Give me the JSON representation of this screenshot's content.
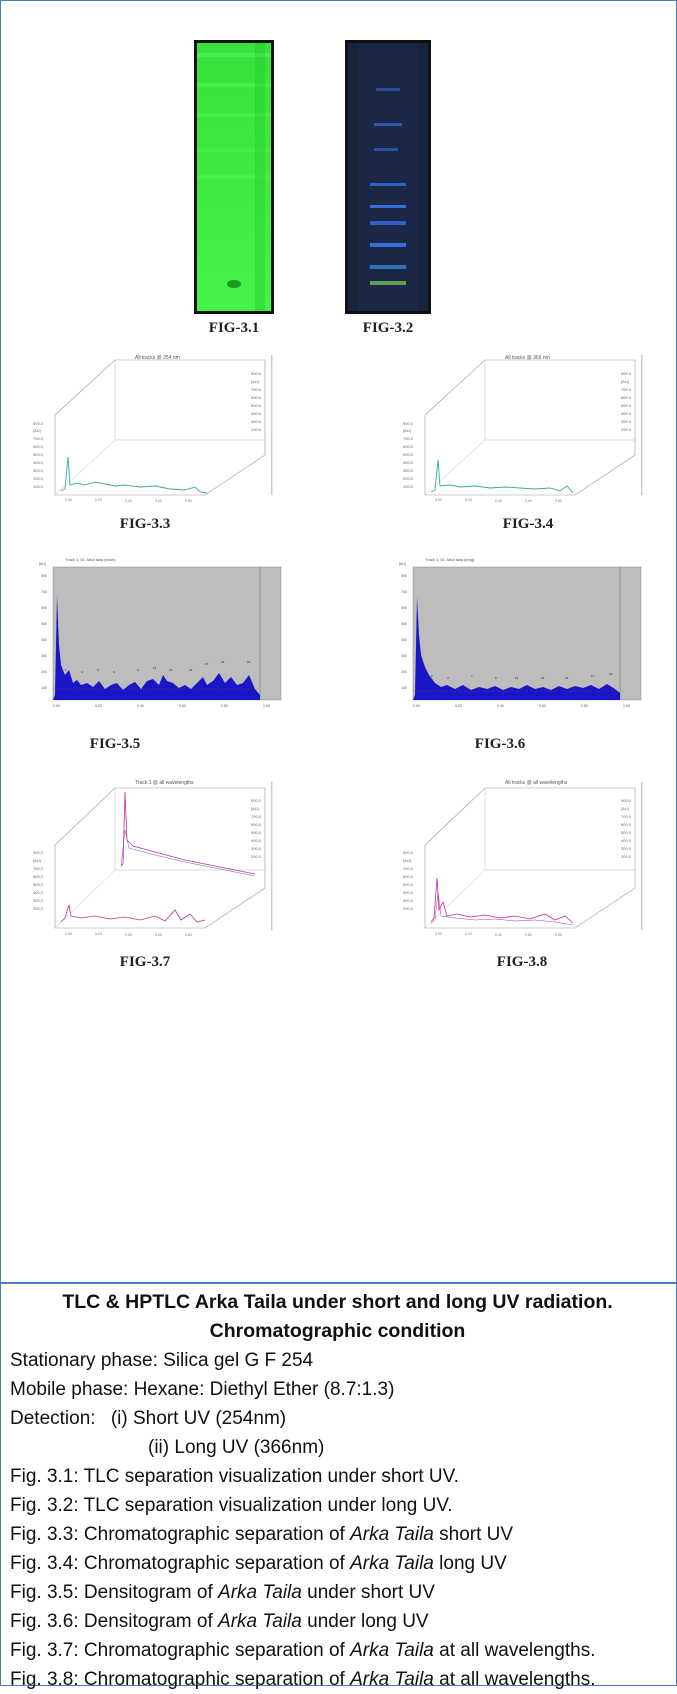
{
  "figures": {
    "fig_3_1": "FIG-3.1",
    "fig_3_2": "FIG-3.2",
    "fig_3_3": "FIG-3.3",
    "fig_3_4": "FIG-3.4",
    "fig_3_5": "FIG-3.5",
    "fig_3_6": "FIG-3.6",
    "fig_3_7": "FIG-3.7",
    "fig_3_8": "FIG-3.8"
  },
  "caption": {
    "title_line1": "TLC & HPTLC Arka Taila under short and long UV radiation.",
    "title_line2": "Chromatographic condition",
    "stationary": "Stationary phase: Silica gel G F 254",
    "mobile": "Mobile phase: Hexane: Diethyl Ether (8.7:1.3)",
    "detection_label": "Detection:",
    "detection_1": "(i) Short UV (254nm)",
    "detection_2": "(ii) Long UV (366nm)",
    "items": [
      {
        "pre": "Fig. 3.1: TLC separation visualization under short UV.",
        "em": "",
        "post": ""
      },
      {
        "pre": "Fig. 3.2: TLC separation visualization under long UV.",
        "em": "",
        "post": ""
      },
      {
        "pre": "Fig. 3.3: Chromatographic separation of ",
        "em": "Arka Taila",
        "post": " short UV"
      },
      {
        "pre": "Fig. 3.4: Chromatographic separation of ",
        "em": "Arka Taila",
        "post": " long UV"
      },
      {
        "pre": "Fig. 3.5: Densitogram of ",
        "em": "Arka Taila",
        "post": " under short UV"
      },
      {
        "pre": "Fig. 3.6: Densitogram of ",
        "em": "Arka Taila",
        "post": " under long UV"
      },
      {
        "pre": "Fig. 3.7: Chromatographic separation of ",
        "em": "Arka Taila",
        "post": " at all wavelengths."
      },
      {
        "pre": "Fig. 3.8: Chromatographic separation of ",
        "em": "Arka Taila",
        "post": " at all wavelengths."
      }
    ]
  },
  "colors": {
    "border": "#4a7ebb",
    "tlc_green": "#3ee842",
    "tlc_dark": "#18243c",
    "densitogram_fill": "#1a16c8",
    "plot_bg": "#bdbdbd",
    "trace_teal": "#3aa89a",
    "trace_magenta": "#c0309a"
  }
}
